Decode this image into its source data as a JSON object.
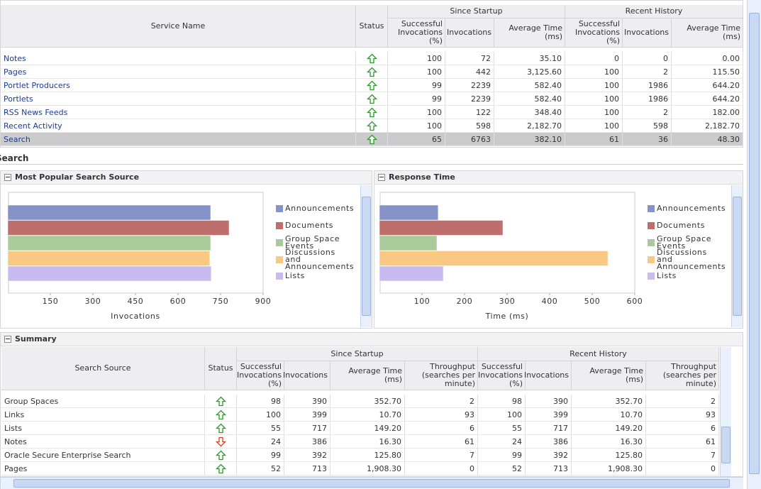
{
  "services_table": {
    "group_headers": [
      "Since Startup",
      "Recent History"
    ],
    "columns": [
      "Service Name",
      "Status",
      "Successful Invocations (%)",
      "Invocations",
      "Average Time (ms)",
      "Successful Invocations (%)",
      "Invocations",
      "Average Time (ms)"
    ],
    "rows": [
      {
        "name": "Notes",
        "status": "up",
        "cells": [
          "100",
          "72",
          "35.10",
          "0",
          "0",
          "0.00"
        ]
      },
      {
        "name": "Pages",
        "status": "up",
        "cells": [
          "100",
          "442",
          "3,125.60",
          "100",
          "2",
          "115.50"
        ]
      },
      {
        "name": "Portlet Producers",
        "status": "up",
        "cells": [
          "99",
          "2239",
          "582.40",
          "100",
          "1986",
          "644.20"
        ]
      },
      {
        "name": "Portlets",
        "status": "up",
        "cells": [
          "99",
          "2239",
          "582.40",
          "100",
          "1986",
          "644.20"
        ]
      },
      {
        "name": "RSS News Feeds",
        "status": "up",
        "cells": [
          "100",
          "122",
          "348.40",
          "100",
          "2",
          "182.00"
        ]
      },
      {
        "name": "Recent Activity",
        "status": "up",
        "cells": [
          "100",
          "598",
          "2,182.70",
          "100",
          "598",
          "2,182.70"
        ]
      },
      {
        "name": "Search",
        "status": "up",
        "selected": true,
        "cells": [
          "65",
          "6763",
          "382.10",
          "61",
          "36",
          "48.30"
        ]
      }
    ]
  },
  "section_title": "Search",
  "chart_data": [
    {
      "type": "bar",
      "orientation": "horizontal",
      "title": "Most Popular Search Source",
      "categories": [
        "Announcements",
        "Documents",
        "Group Space Events",
        "Discussions and Announcements",
        "Lists"
      ],
      "values": [
        715,
        780,
        715,
        712,
        717
      ],
      "colors": [
        "#8593c9",
        "#bf6e6e",
        "#a9cb9c",
        "#f9c983",
        "#c9bbef"
      ],
      "xlim": [
        0,
        900
      ],
      "xticks": [
        150,
        300,
        450,
        600,
        750,
        900
      ],
      "x_label": "Invocations"
    },
    {
      "type": "bar",
      "orientation": "horizontal",
      "title": "Response Time",
      "categories": [
        "Announcements",
        "Documents",
        "Group Space Events",
        "Discussions and Announcements",
        "Lists"
      ],
      "values": [
        138,
        290,
        135,
        537,
        150
      ],
      "colors": [
        "#8593c9",
        "#bf6e6e",
        "#a9cb9c",
        "#f9c983",
        "#c9bbef"
      ],
      "xlim": [
        0,
        600
      ],
      "xticks": [
        100,
        200,
        300,
        400,
        500,
        600
      ],
      "x_label": "Time (ms)"
    }
  ],
  "summary_table": {
    "title": "Summary",
    "group_headers": [
      "Since Startup",
      "Recent History"
    ],
    "columns": [
      "Search Source",
      "Status",
      "Successful Invocations (%)",
      "Invocations",
      "Average Time (ms)",
      "Throughput (searches per minute)",
      "Successful Invocations (%)",
      "Invocations",
      "Average Time (ms)",
      "Throughput (searches per minute)"
    ],
    "rows": [
      {
        "name": "Group Spaces",
        "status": "up",
        "cells": [
          "98",
          "390",
          "352.70",
          "2",
          "98",
          "390",
          "352.70",
          "2"
        ]
      },
      {
        "name": "Links",
        "status": "up",
        "cells": [
          "100",
          "399",
          "10.70",
          "93",
          "100",
          "399",
          "10.70",
          "93"
        ]
      },
      {
        "name": "Lists",
        "status": "up",
        "cells": [
          "55",
          "717",
          "149.20",
          "6",
          "55",
          "717",
          "149.20",
          "6"
        ]
      },
      {
        "name": "Notes",
        "status": "down",
        "cells": [
          "24",
          "386",
          "16.30",
          "61",
          "24",
          "386",
          "16.30",
          "61"
        ]
      },
      {
        "name": "Oracle Secure Enterprise Search",
        "status": "up",
        "cells": [
          "99",
          "392",
          "125.80",
          "7",
          "99",
          "392",
          "125.80",
          "7"
        ]
      },
      {
        "name": "Pages",
        "status": "up",
        "cells": [
          "52",
          "713",
          "1,908.30",
          "0",
          "52",
          "713",
          "1,908.30",
          "0"
        ]
      }
    ]
  }
}
